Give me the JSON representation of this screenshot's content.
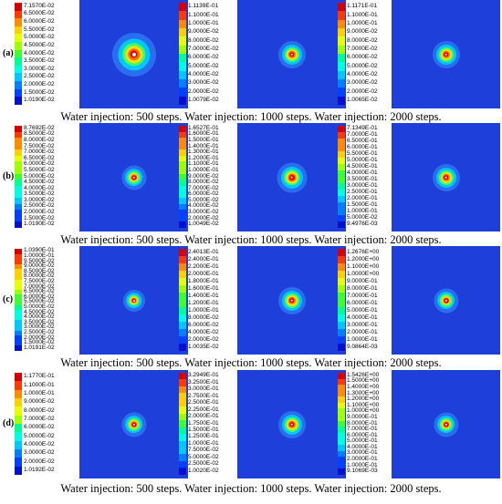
{
  "colors": {
    "field_bg": "#1e3fd9"
  },
  "rows": [
    {
      "label": "(a)",
      "caption": "Water injection: 500 steps. Water injection: 1000 steps. Water injection: 2000 steps.",
      "panels": [
        {
          "steps": 500,
          "ticks": [
            "7.1570E-02",
            "6.5000E-02",
            "6.0000E-02",
            "5.5000E-02",
            "5.0000E-02",
            "4.5000E-02",
            "4.0000E-02",
            "3.5000E-02",
            "3.0000E-02",
            "2.5000E-02",
            "2.0000E-02",
            "1.5000E-02",
            "1.0190E-02"
          ],
          "spot_scale": 1.6
        },
        {
          "steps": 1000,
          "ticks": [
            "1.1139E-01",
            "1.1000E-01",
            "1.0000E-01",
            "9.0000E-02",
            "8.0000E-02",
            "7.0000E-02",
            "6.0000E-02",
            "5.0000E-02",
            "4.0000E-02",
            "3.0000E-02",
            "2.0000E-02",
            "1.0079E-02"
          ],
          "spot_scale": 1.0
        },
        {
          "steps": 2000,
          "ticks": [
            "1.1171E-01",
            "1.1000E-01",
            "1.0000E-01",
            "9.0000E-02",
            "8.0000E-02",
            "7.0000E-02",
            "6.0000E-02",
            "5.0000E-02",
            "4.0000E-02",
            "3.0000E-02",
            "2.0000E-02",
            "1.0065E-02"
          ],
          "spot_scale": 1.0
        }
      ]
    },
    {
      "label": "(b)",
      "caption": "Water injection: 500 steps. Water injection: 1000 steps. Water injection: 2000 steps.",
      "panels": [
        {
          "steps": 500,
          "ticks": [
            "8.7692E-02",
            "8.5000E-02",
            "8.0000E-02",
            "7.5000E-02",
            "7.0000E-02",
            "6.5000E-02",
            "6.0000E-02",
            "5.5000E-02",
            "5.0000E-02",
            "4.5000E-02",
            "4.0000E-02",
            "3.5000E-02",
            "3.0000E-02",
            "2.5000E-02",
            "2.0000E-02",
            "1.5000E-02",
            "1.0190E-02"
          ],
          "spot_scale": 0.9
        },
        {
          "steps": 1000,
          "ticks": [
            "1.6527E-01",
            "1.6000E-01",
            "1.5000E-01",
            "1.4000E-01",
            "1.3000E-01",
            "1.2000E-01",
            "1.1000E-01",
            "1.0000E-01",
            "9.0000E-02",
            "8.0000E-02",
            "7.0000E-02",
            "6.0000E-02",
            "5.0000E-02",
            "4.0000E-02",
            "3.0000E-02",
            "2.0000E-02",
            "1.0049E-02"
          ],
          "spot_scale": 1.1
        },
        {
          "steps": 2000,
          "ticks": [
            "7.1349E-01",
            "7.0000E-01",
            "6.5000E-01",
            "6.0000E-01",
            "5.5000E-01",
            "5.0000E-01",
            "4.5000E-01",
            "4.0000E-01",
            "3.5000E-01",
            "3.0000E-01",
            "2.5000E-01",
            "2.0000E-01",
            "1.5000E-01",
            "1.0000E-01",
            "5.0000E-02",
            "9.4976E-03"
          ],
          "spot_scale": 1.0
        }
      ]
    },
    {
      "label": "(c)",
      "caption": "Water injection: 500 steps. Water injection: 1000 steps. Water injection: 2000 steps.",
      "panels": [
        {
          "steps": 500,
          "ticks": [
            "1.0390E-01",
            "1.0000E-01",
            "9.5000E-02",
            "9.0000E-02",
            "8.5000E-02",
            "8.0000E-02",
            "7.5000E-02",
            "7.0000E-02",
            "6.5000E-02",
            "6.0000E-02",
            "5.5000E-02",
            "5.0000E-02",
            "4.5000E-02",
            "4.0000E-02",
            "3.5000E-02",
            "3.0000E-02",
            "2.5000E-02",
            "2.0000E-02",
            "1.5000E-02",
            "1.0191E-02"
          ],
          "spot_scale": 0.8
        },
        {
          "steps": 1000,
          "ticks": [
            "2.4013E-01",
            "2.4000E-01",
            "2.2000E-01",
            "2.0000E-01",
            "1.8000E-01",
            "1.6000E-01",
            "1.4000E-01",
            "1.2000E-01",
            "1.0000E-01",
            "8.0000E-02",
            "6.0000E-02",
            "4.0000E-02",
            "2.0000E-02",
            "1.0035E-02"
          ],
          "spot_scale": 1.0
        },
        {
          "steps": 2000,
          "ticks": [
            "1.2676E+00",
            "1.2000E+00",
            "1.1000E+00",
            "1.0000E+00",
            "9.0000E-01",
            "8.0000E-01",
            "7.0000E-01",
            "6.0000E-01",
            "5.0000E-01",
            "4.0000E-01",
            "3.0000E-01",
            "2.0000E-01",
            "1.0000E-01",
            "9.0864E-03"
          ],
          "spot_scale": 0.9
        }
      ]
    },
    {
      "label": "(d)",
      "caption": "Water injection: 500 steps. Water injection: 1000 steps. Water injection: 2000 steps.",
      "panels": [
        {
          "steps": 500,
          "ticks": [
            "1.1770E-01",
            "1.1000E-01",
            "1.0000E-01",
            "9.0000E-02",
            "8.0000E-02",
            "7.0000E-02",
            "6.0000E-02",
            "5.0000E-02",
            "4.0000E-02",
            "3.0000E-02",
            "2.0000E-02",
            "1.0192E-02"
          ],
          "spot_scale": 0.9
        },
        {
          "steps": 1000,
          "ticks": [
            "3.2949E-01",
            "3.2500E-01",
            "3.0000E-01",
            "2.7500E-01",
            "2.5000E-01",
            "2.2500E-01",
            "2.0000E-01",
            "1.7500E-01",
            "1.5000E-01",
            "1.2500E-01",
            "1.0000E-01",
            "7.5000E-02",
            "5.0000E-02",
            "2.5000E-02",
            "1.0020E-02"
          ],
          "spot_scale": 1.0
        },
        {
          "steps": 2000,
          "ticks": [
            "1.5426E+00",
            "1.5000E+00",
            "1.4000E+00",
            "1.3000E+00",
            "1.2000E+00",
            "1.1000E+00",
            "1.0000E+00",
            "9.0000E-01",
            "8.0000E-01",
            "7.0000E-01",
            "6.0000E-01",
            "5.0000E-01",
            "4.0000E-01",
            "3.0000E-01",
            "2.0000E-01",
            "1.0000E-01",
            "9.1069E-03"
          ],
          "spot_scale": 0.9
        }
      ]
    }
  ]
}
